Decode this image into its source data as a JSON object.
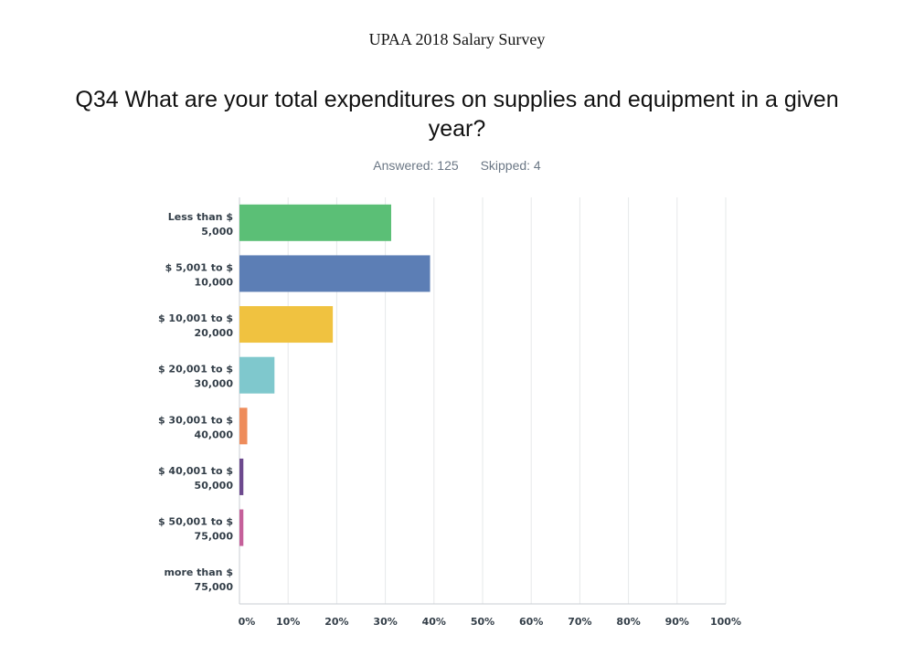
{
  "header": {
    "title": "UPAA 2018 Salary Survey"
  },
  "question": {
    "text": "Q34 What are your total expenditures on supplies and equipment in a given year?"
  },
  "meta": {
    "answered": "Answered: 125",
    "skipped": "Skipped: 4"
  },
  "chart_data": {
    "type": "bar",
    "orientation": "horizontal",
    "categories": [
      [
        "Less than $",
        "5,000"
      ],
      [
        "$ 5,001 to $",
        "10,000"
      ],
      [
        "$ 10,001 to $",
        "20,000"
      ],
      [
        "$ 20,001 to $",
        "30,000"
      ],
      [
        "$ 30,001 to $",
        "40,000"
      ],
      [
        "$ 40,001 to $",
        "50,000"
      ],
      [
        "$ 50,001 to $",
        "75,000"
      ],
      [
        "more than $",
        "75,000"
      ]
    ],
    "values": [
      31.2,
      39.2,
      19.2,
      7.2,
      1.6,
      0.8,
      0.8,
      0.0
    ],
    "colors": [
      "#5bbf76",
      "#5c7eb5",
      "#f0c240",
      "#7fc8cd",
      "#ee8c5b",
      "#6d4a8e",
      "#c5609a",
      "#cccccc"
    ],
    "xlim": [
      0,
      100
    ],
    "xticks": [
      "0%",
      "10%",
      "20%",
      "30%",
      "40%",
      "50%",
      "60%",
      "70%",
      "80%",
      "90%",
      "100%"
    ],
    "grid": true
  }
}
